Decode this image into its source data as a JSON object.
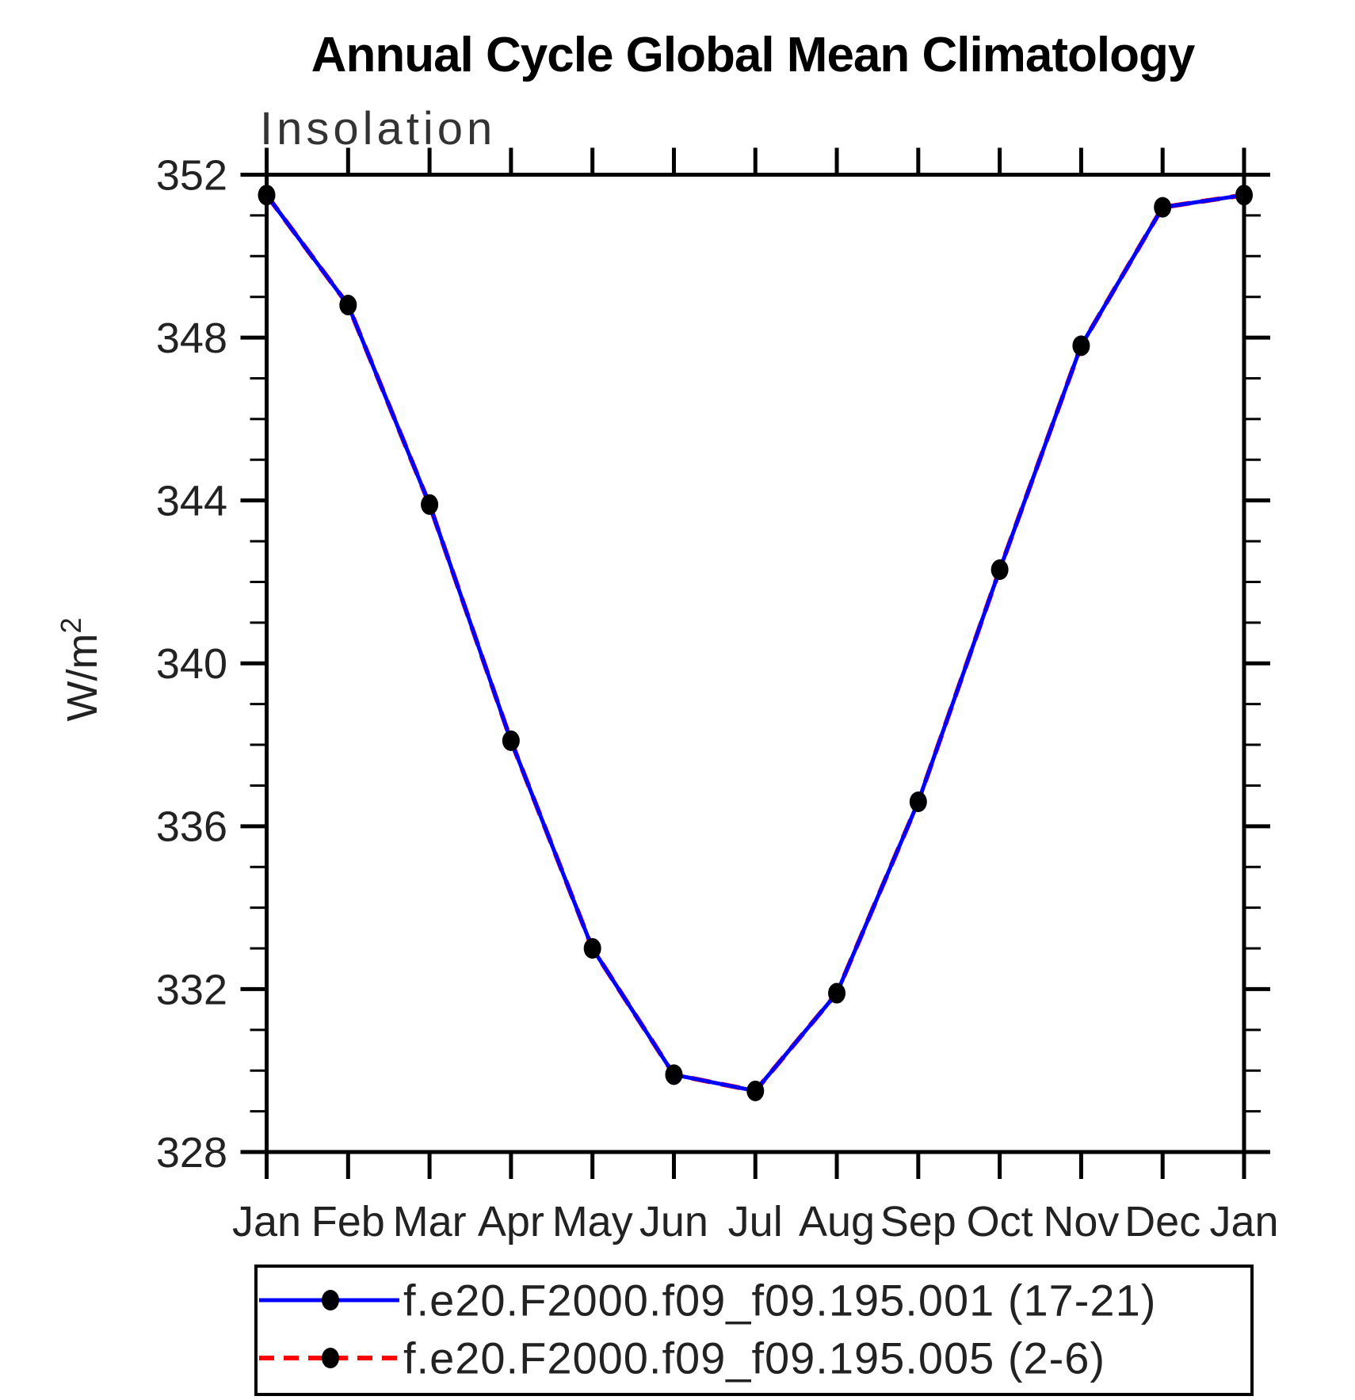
{
  "title": "Annual Cycle Global Mean Climatology",
  "subtitle": "Insolation",
  "ylabel": {
    "base": "W/m",
    "exponent": "2"
  },
  "chart_data": {
    "type": "line",
    "categories": [
      "Jan",
      "Feb",
      "Mar",
      "Apr",
      "May",
      "Jun",
      "Jul",
      "Aug",
      "Sep",
      "Oct",
      "Nov",
      "Dec",
      "Jan"
    ],
    "xlabel": "",
    "ylabel": "W/m2",
    "ylim": [
      328,
      352
    ],
    "y_ticks": [
      352,
      348,
      344,
      340,
      336,
      332,
      328
    ],
    "y_minor_tick_interval": 1,
    "grid": false,
    "legend_position": "bottom",
    "series": [
      {
        "name": "f.e20.F2000.f09_f09.195.001 (17-21)",
        "color": "#0000ff",
        "line_style": "solid",
        "marker": "filled-black-circle",
        "values": [
          351.5,
          348.8,
          343.9,
          338.1,
          333.0,
          329.9,
          329.5,
          331.9,
          336.6,
          342.3,
          347.8,
          351.2,
          351.5
        ]
      },
      {
        "name": "f.e20.F2000.f09_f09.195.005 (2-6)",
        "color": "#ff0000",
        "line_style": "dashed",
        "marker": "filled-black-circle",
        "values": [
          351.5,
          348.8,
          343.9,
          338.1,
          333.0,
          329.9,
          329.5,
          331.9,
          336.6,
          342.3,
          347.8,
          351.2,
          351.5
        ]
      }
    ]
  }
}
